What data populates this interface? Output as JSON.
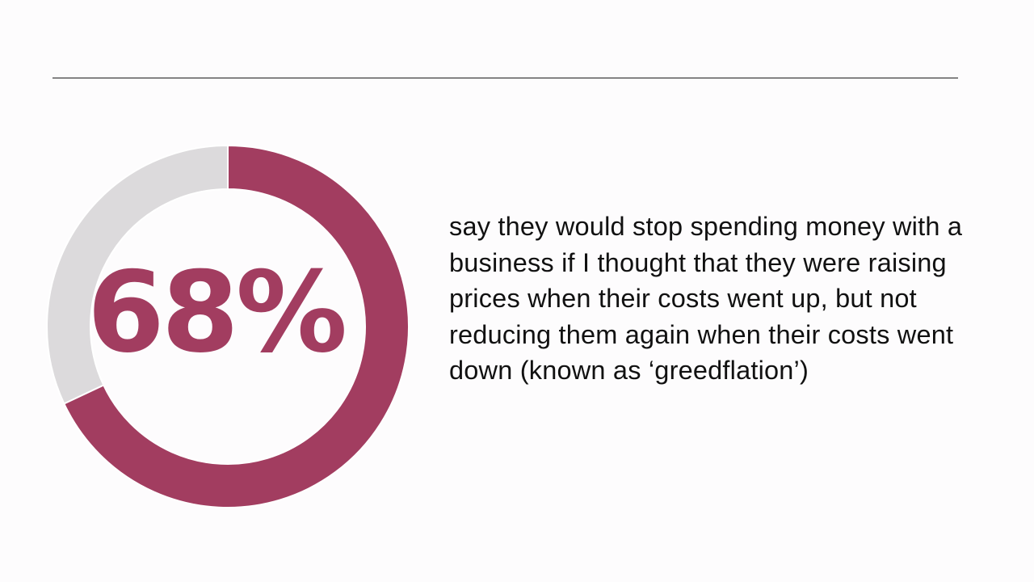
{
  "slide": {
    "statement": "say they would stop spending money with a business if I thought that they were raising prices when their costs went up, but not reducing them again when their costs went down (known as ‘greedflation’)"
  },
  "chart_data": {
    "type": "pie",
    "variant": "donut",
    "center_label": "68%",
    "values": [
      68,
      32
    ],
    "colors": {
      "value": "#a23d60",
      "remainder": "#dcdadc",
      "center_label": "#a23d60"
    }
  }
}
